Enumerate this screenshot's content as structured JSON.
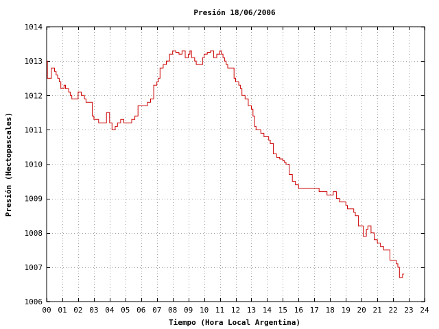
{
  "chart_data": {
    "type": "line",
    "title": "Presión 18/06/2006",
    "xlabel": "Tiempo (Hora Local Argentina)",
    "ylabel": "Presión (Hectopascales)",
    "xlim": [
      0,
      24
    ],
    "ylim": [
      1006,
      1014
    ],
    "xticks": [
      "00",
      "01",
      "02",
      "03",
      "04",
      "05",
      "06",
      "07",
      "08",
      "09",
      "10",
      "11",
      "12",
      "13",
      "14",
      "15",
      "16",
      "17",
      "18",
      "19",
      "20",
      "21",
      "22",
      "23",
      "24"
    ],
    "yticks": [
      "1006",
      "1007",
      "1008",
      "1009",
      "1010",
      "1011",
      "1012",
      "1013",
      "1014"
    ],
    "grid": true,
    "line_style": "step",
    "color": "#cc0000",
    "series": [
      {
        "x": [
          0.0,
          0.05,
          0.1,
          0.15,
          0.2,
          0.3,
          0.4,
          0.5,
          0.6,
          0.7,
          0.8,
          0.9,
          1.0,
          1.1,
          1.2,
          1.3,
          1.4,
          1.5,
          1.6,
          1.7,
          1.8,
          1.9,
          2.0,
          2.2,
          2.4,
          2.5,
          2.6,
          2.7,
          2.8,
          2.9,
          3.0,
          3.2,
          3.3,
          3.4,
          3.6,
          3.8,
          4.0,
          4.15,
          4.25,
          4.35,
          4.5,
          4.7,
          4.9,
          5.1,
          5.2,
          5.4,
          5.6,
          5.8,
          6.0,
          6.1,
          6.2,
          6.4,
          6.6,
          6.8,
          7.0,
          7.1,
          7.2,
          7.3,
          7.4,
          7.6,
          7.8,
          8.0,
          8.2,
          8.4,
          8.6,
          8.8,
          9.0,
          9.1,
          9.2,
          9.3,
          9.4,
          9.5,
          9.7,
          9.9,
          10.0,
          10.2,
          10.4,
          10.6,
          10.8,
          11.0,
          11.1,
          11.2,
          11.3,
          11.4,
          11.5,
          11.7,
          11.9,
          12.0,
          12.1,
          12.2,
          12.3,
          12.4,
          12.6,
          12.8,
          13.0,
          13.1,
          13.2,
          13.3,
          13.4,
          13.6,
          13.8,
          14.0,
          14.1,
          14.2,
          14.4,
          14.6,
          14.8,
          15.0,
          15.1,
          15.2,
          15.4,
          15.6,
          15.8,
          16.0,
          16.2,
          16.4,
          16.6,
          16.8,
          17.0,
          17.2,
          17.3,
          17.4,
          17.6,
          17.8,
          18.0,
          18.2,
          18.4,
          18.6,
          18.8,
          19.0,
          19.1,
          19.2,
          19.4,
          19.5,
          19.6,
          19.8,
          20.0,
          20.1,
          20.2,
          20.3,
          20.4,
          20.6,
          20.8,
          21.0,
          21.2,
          21.3,
          21.4,
          21.6,
          21.8,
          22.0,
          22.1,
          22.2,
          22.3,
          22.4,
          22.5,
          22.6,
          22.7
        ],
        "y": [
          1013.0,
          1012.5,
          1012.5,
          1012.5,
          1012.5,
          1012.8,
          1012.8,
          1012.7,
          1012.6,
          1012.5,
          1012.4,
          1012.2,
          1012.2,
          1012.3,
          1012.2,
          1012.2,
          1012.1,
          1012.0,
          1011.9,
          1011.9,
          1011.9,
          1011.9,
          1012.1,
          1012.0,
          1011.9,
          1011.8,
          1011.8,
          1011.8,
          1011.8,
          1011.4,
          1011.3,
          1011.3,
          1011.2,
          1011.2,
          1011.2,
          1011.5,
          1011.2,
          1011.0,
          1011.0,
          1011.1,
          1011.2,
          1011.3,
          1011.2,
          1011.2,
          1011.2,
          1011.3,
          1011.4,
          1011.7,
          1011.7,
          1011.7,
          1011.7,
          1011.8,
          1011.9,
          1012.3,
          1012.4,
          1012.5,
          1012.8,
          1012.8,
          1012.9,
          1013.0,
          1013.2,
          1013.3,
          1013.25,
          1013.2,
          1013.3,
          1013.1,
          1013.2,
          1013.3,
          1013.1,
          1013.1,
          1013.0,
          1012.9,
          1012.9,
          1013.1,
          1013.2,
          1013.25,
          1013.3,
          1013.1,
          1013.2,
          1013.3,
          1013.2,
          1013.1,
          1013.0,
          1012.9,
          1012.8,
          1012.8,
          1012.5,
          1012.4,
          1012.4,
          1012.3,
          1012.2,
          1012.0,
          1011.9,
          1011.7,
          1011.6,
          1011.4,
          1011.1,
          1011.0,
          1011.0,
          1010.9,
          1010.8,
          1010.8,
          1010.7,
          1010.6,
          1010.3,
          1010.2,
          1010.15,
          1010.1,
          1010.05,
          1010.0,
          1009.7,
          1009.5,
          1009.4,
          1009.3,
          1009.3,
          1009.3,
          1009.3,
          1009.3,
          1009.3,
          1009.3,
          1009.2,
          1009.2,
          1009.2,
          1009.1,
          1009.1,
          1009.2,
          1009.0,
          1008.9,
          1008.9,
          1008.8,
          1008.7,
          1008.7,
          1008.7,
          1008.6,
          1008.5,
          1008.2,
          1008.2,
          1007.9,
          1007.9,
          1008.1,
          1008.2,
          1008.0,
          1007.8,
          1007.7,
          1007.6,
          1007.6,
          1007.5,
          1007.5,
          1007.2,
          1007.2,
          1007.2,
          1007.1,
          1007.0,
          1006.7,
          1006.7,
          1006.8,
          1006.8
        ]
      }
    ]
  }
}
